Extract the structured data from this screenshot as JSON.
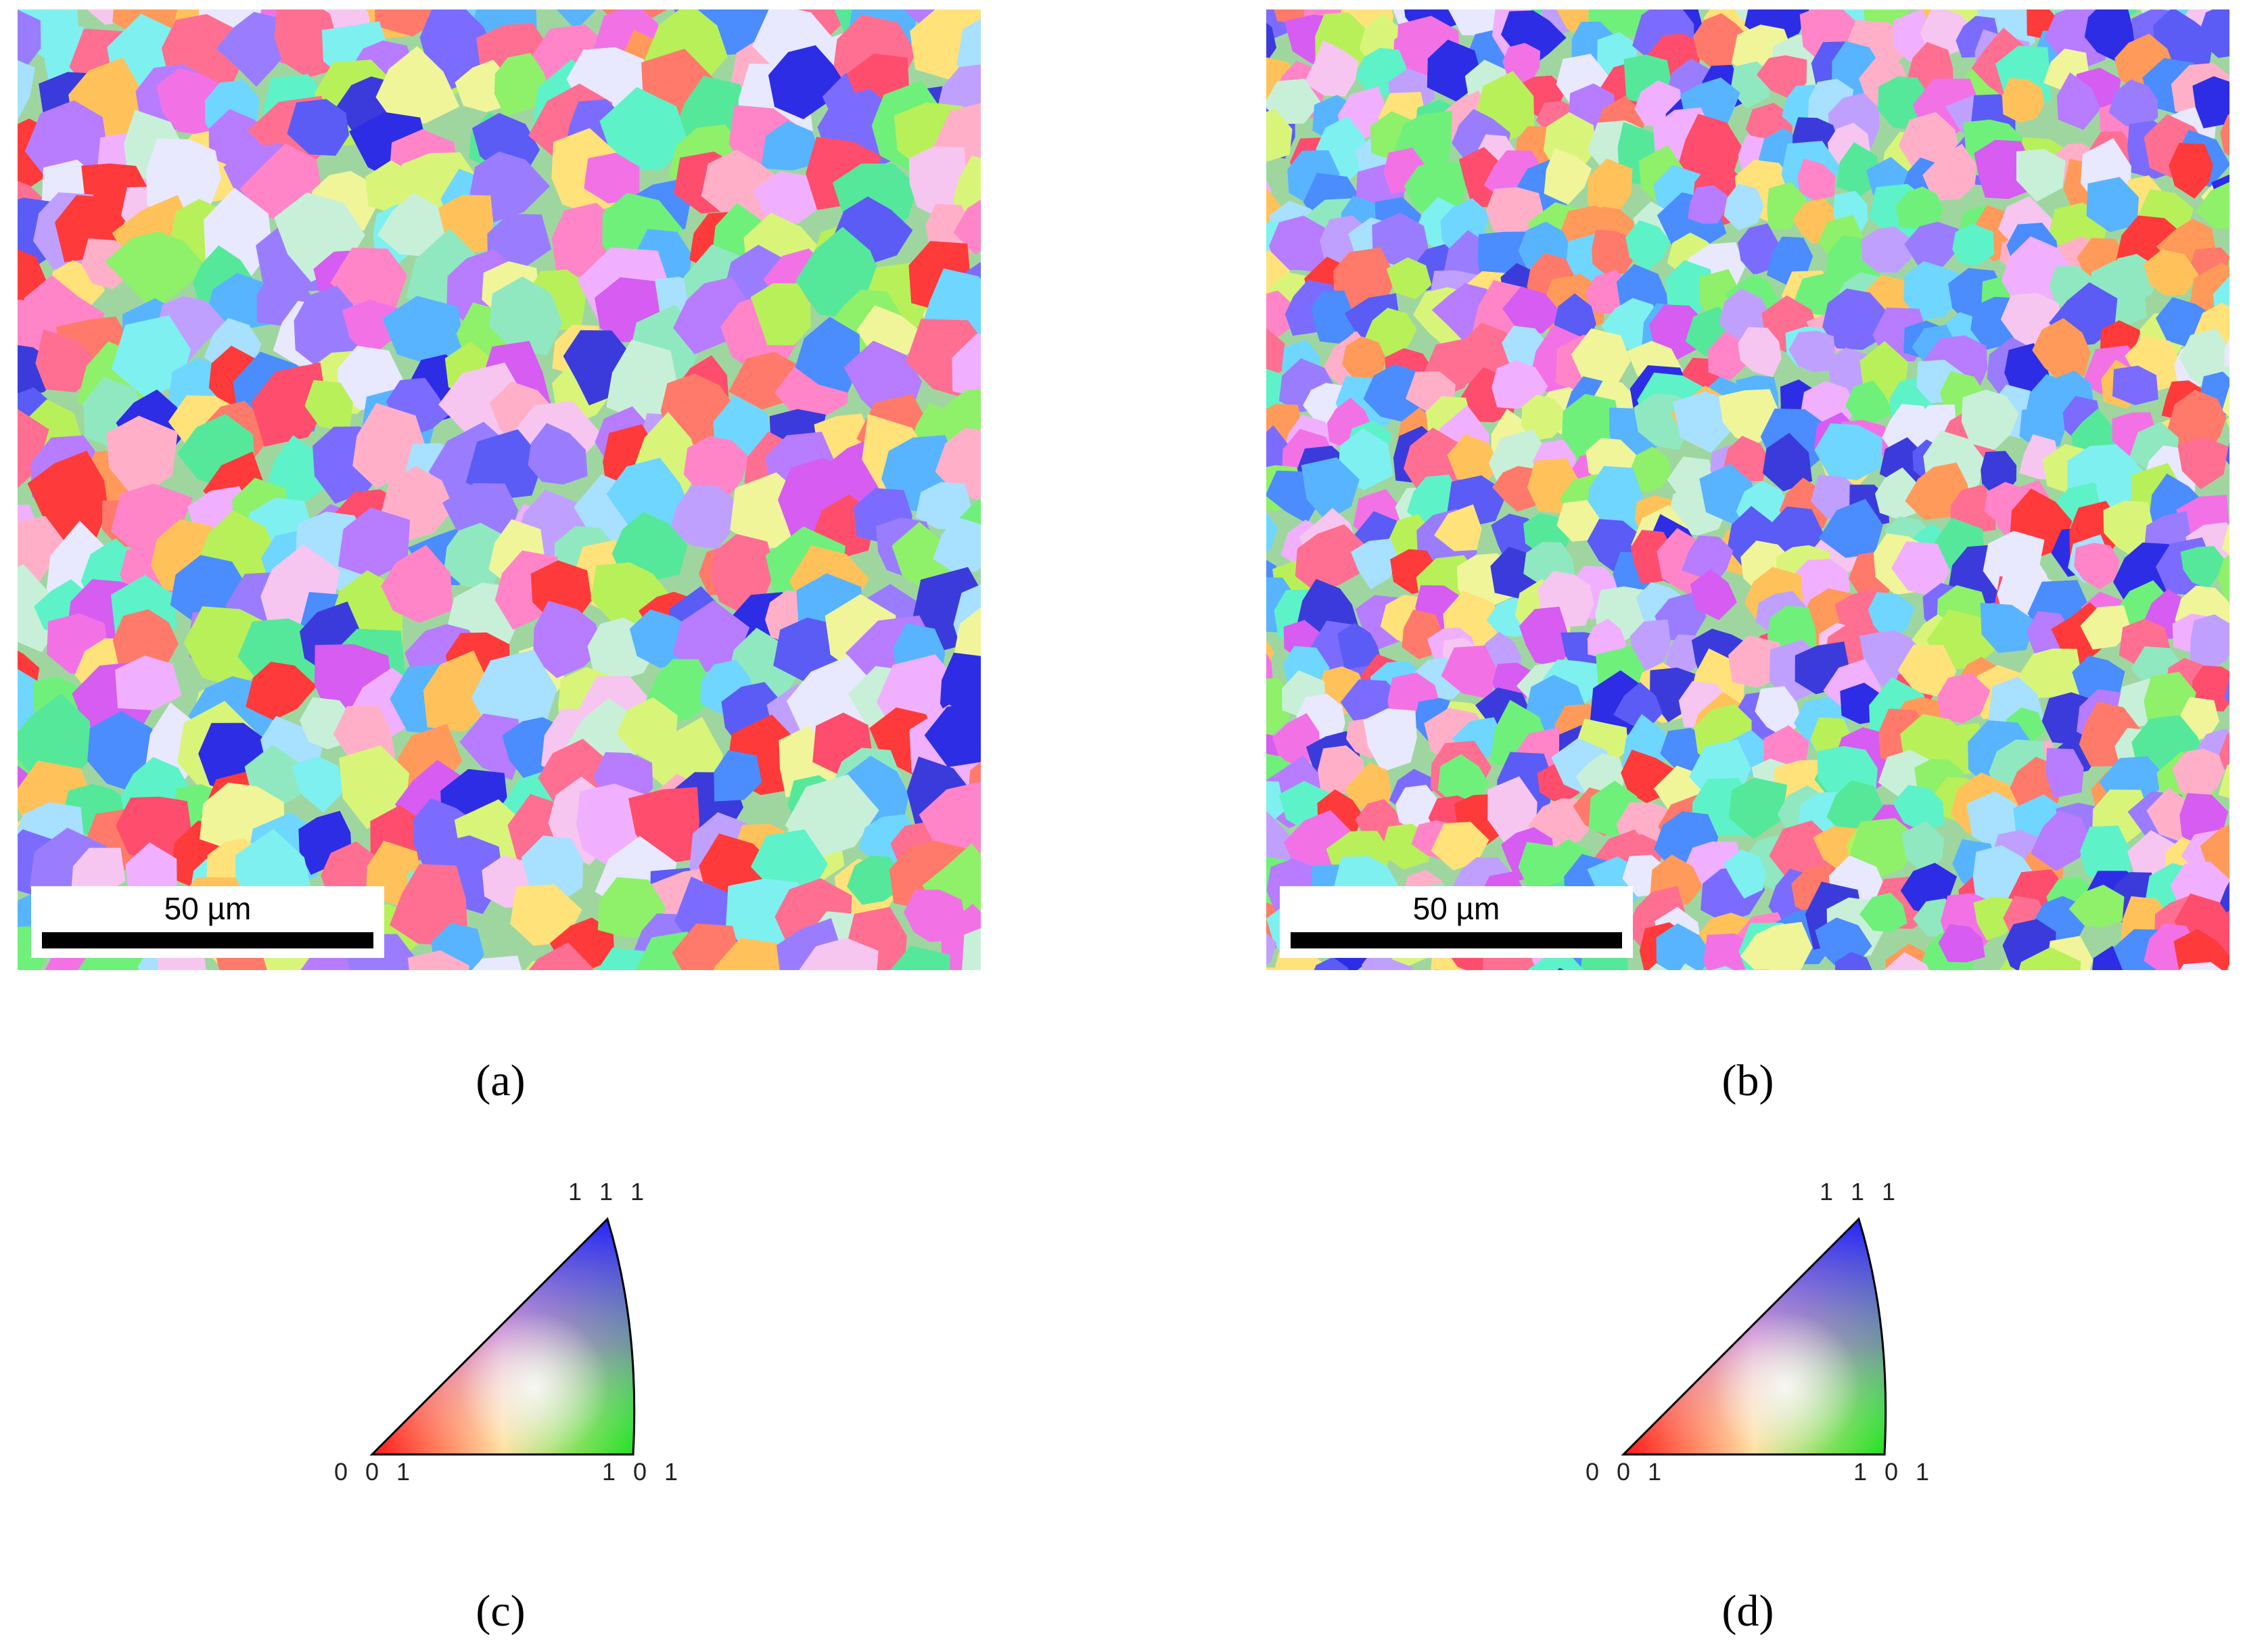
{
  "panels": [
    {
      "id": "a",
      "caption": "(a)",
      "scale_bar": {
        "label": "50 µm",
        "length_um": 50
      }
    },
    {
      "id": "b",
      "caption": "(b)",
      "scale_bar": {
        "label": "50 µm",
        "length_um": 50
      }
    }
  ],
  "ipf_keys": [
    {
      "id": "c",
      "caption": "(c)",
      "labels": {
        "top": "1 1 1",
        "left": "0 0 1",
        "right": "1 0 1"
      }
    },
    {
      "id": "d",
      "caption": "(d)",
      "labels": {
        "top": "1 1 1",
        "left": "0 0 1",
        "right": "1 0 1"
      }
    }
  ],
  "colors": {
    "001": "#ff2020",
    "101": "#20e020",
    "111": "#2020ff"
  }
}
